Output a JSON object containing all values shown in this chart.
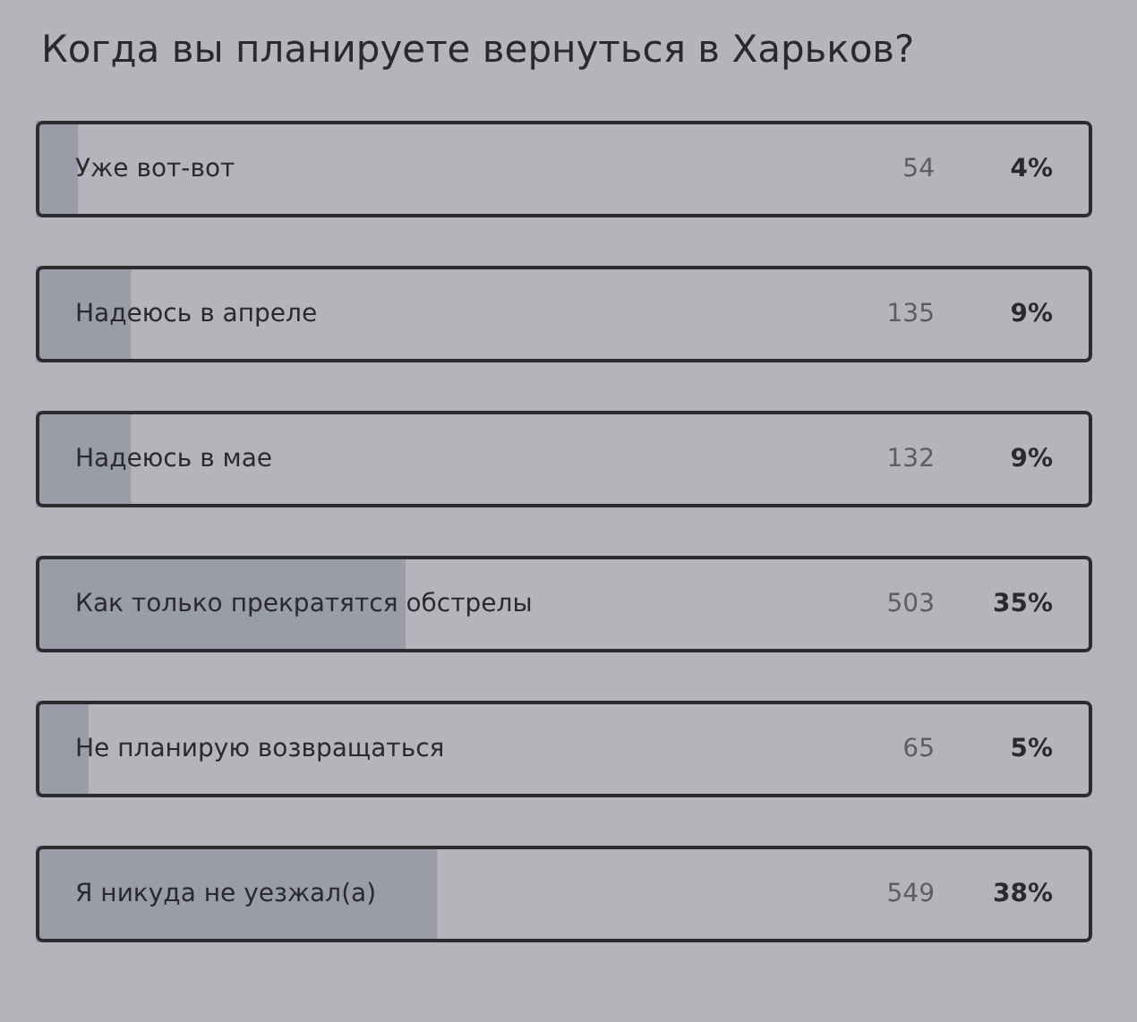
{
  "chart_data": {
    "type": "bar",
    "orientation": "horizontal",
    "title": "Когда вы планируете вернуться в Харьков?",
    "categories": [
      "Уже вот-вот",
      "Надеюсь в апреле",
      "Надеюсь в мае",
      "Как только прекратятся обстрелы",
      "Не планирую возвращаться",
      "Я никуда не уезжал(а)"
    ],
    "values": [
      4,
      9,
      9,
      35,
      5,
      38
    ],
    "value_labels": [
      "4%",
      "9%",
      "9%",
      "35%",
      "5%",
      "38%"
    ],
    "color": "#9a9ca8",
    "annotations": [
      "54",
      "135",
      "132",
      "503",
      "65",
      "549"
    ]
  }
}
